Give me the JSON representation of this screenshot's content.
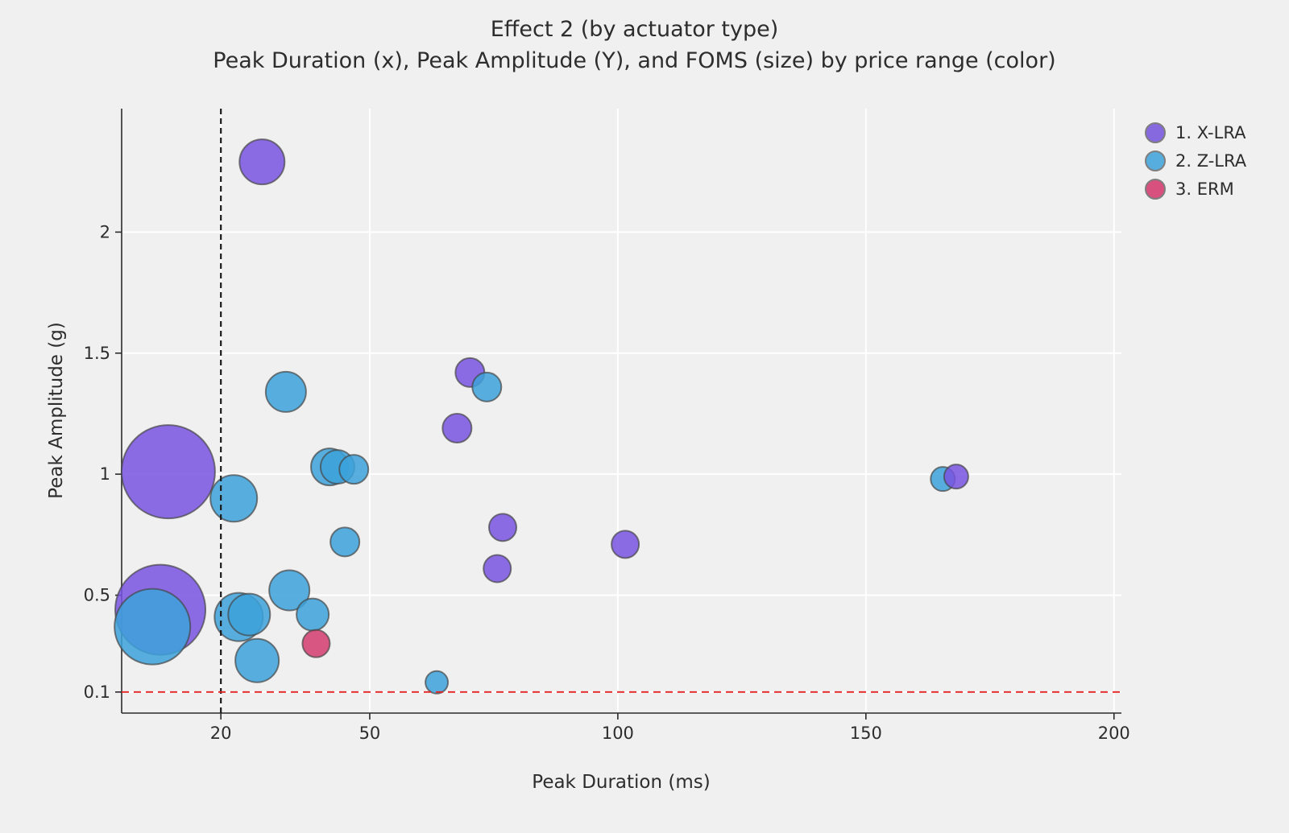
{
  "page": {
    "background_color": "#f0f0f0",
    "grid_color": "#ffffff",
    "axis_line_color": "#2a2a2a",
    "bubble_stroke_color": "rgba(70,70,70,0.7)"
  },
  "chart_data": {
    "type": "scatter",
    "subtype": "bubble",
    "title": "Effect 2 (by actuator type)",
    "subtitle": "Peak Duration (x), Peak Amplitude (Y), and FOMS (size) by price range (color)",
    "xlabel": "Peak Duration (ms)",
    "ylabel": "Peak Amplitude (g)",
    "xlim": [
      0,
      201.5
    ],
    "ylim": [
      0.013,
      2.51
    ],
    "x_ticks": [
      20,
      50,
      100,
      150,
      200
    ],
    "y_ticks": [
      0.1,
      0.5,
      1,
      1.5,
      2
    ],
    "grid": true,
    "legend_position": "top-right",
    "size_encoding": "FOMS",
    "color_encoding": "price range",
    "reference_lines": [
      {
        "orientation": "vertical",
        "x": 20,
        "color": "#1a1a1a",
        "style": "dashed",
        "width": 2.2,
        "dash": "7,5"
      },
      {
        "orientation": "horizontal",
        "y": 0.1,
        "color": "#e32222",
        "style": "dashed",
        "width": 1.8,
        "dash": "9,6"
      }
    ],
    "series": [
      {
        "name": "1. X-LRA",
        "color": "rgba(120,84,225,0.85)",
        "legend_color": "#8668df",
        "points": [
          {
            "x": 28.3,
            "y": 2.29,
            "r": 28
          },
          {
            "x": 70.2,
            "y": 1.42,
            "r": 18
          },
          {
            "x": 67.6,
            "y": 1.19,
            "r": 18
          },
          {
            "x": 9.4,
            "y": 1.01,
            "r": 58
          },
          {
            "x": 76.8,
            "y": 0.78,
            "r": 17
          },
          {
            "x": 75.7,
            "y": 0.61,
            "r": 17
          },
          {
            "x": 101.5,
            "y": 0.71,
            "r": 17
          },
          {
            "x": 168.2,
            "y": 0.99,
            "r": 15,
            "z": 3
          },
          {
            "x": 7.8,
            "y": 0.44,
            "r": 56
          }
        ]
      },
      {
        "name": "2. Z-LRA",
        "color": "rgba(60,162,219,0.85)",
        "legend_color": "#57aede",
        "points": [
          {
            "x": 33.1,
            "y": 1.34,
            "r": 25
          },
          {
            "x": 73.6,
            "y": 1.36,
            "r": 18
          },
          {
            "x": 22.6,
            "y": 0.9,
            "r": 29
          },
          {
            "x": 41.9,
            "y": 1.03,
            "r": 23
          },
          {
            "x": 43.5,
            "y": 1.03,
            "r": 21
          },
          {
            "x": 46.8,
            "y": 1.02,
            "r": 18
          },
          {
            "x": 45.0,
            "y": 0.72,
            "r": 18
          },
          {
            "x": 165.5,
            "y": 0.98,
            "r": 15
          },
          {
            "x": 6.2,
            "y": 0.37,
            "r": 47
          },
          {
            "x": 23.6,
            "y": 0.41,
            "r": 30
          },
          {
            "x": 25.7,
            "y": 0.42,
            "r": 26
          },
          {
            "x": 33.8,
            "y": 0.52,
            "r": 25
          },
          {
            "x": 38.5,
            "y": 0.42,
            "r": 20
          },
          {
            "x": 27.3,
            "y": 0.23,
            "r": 27
          },
          {
            "x": 63.5,
            "y": 0.14,
            "r": 14
          }
        ]
      },
      {
        "name": "3. ERM",
        "color": "rgba(212,60,110,0.85)",
        "legend_color": "#d8517e",
        "points": [
          {
            "x": 39.2,
            "y": 0.3,
            "r": 17
          }
        ]
      }
    ]
  }
}
